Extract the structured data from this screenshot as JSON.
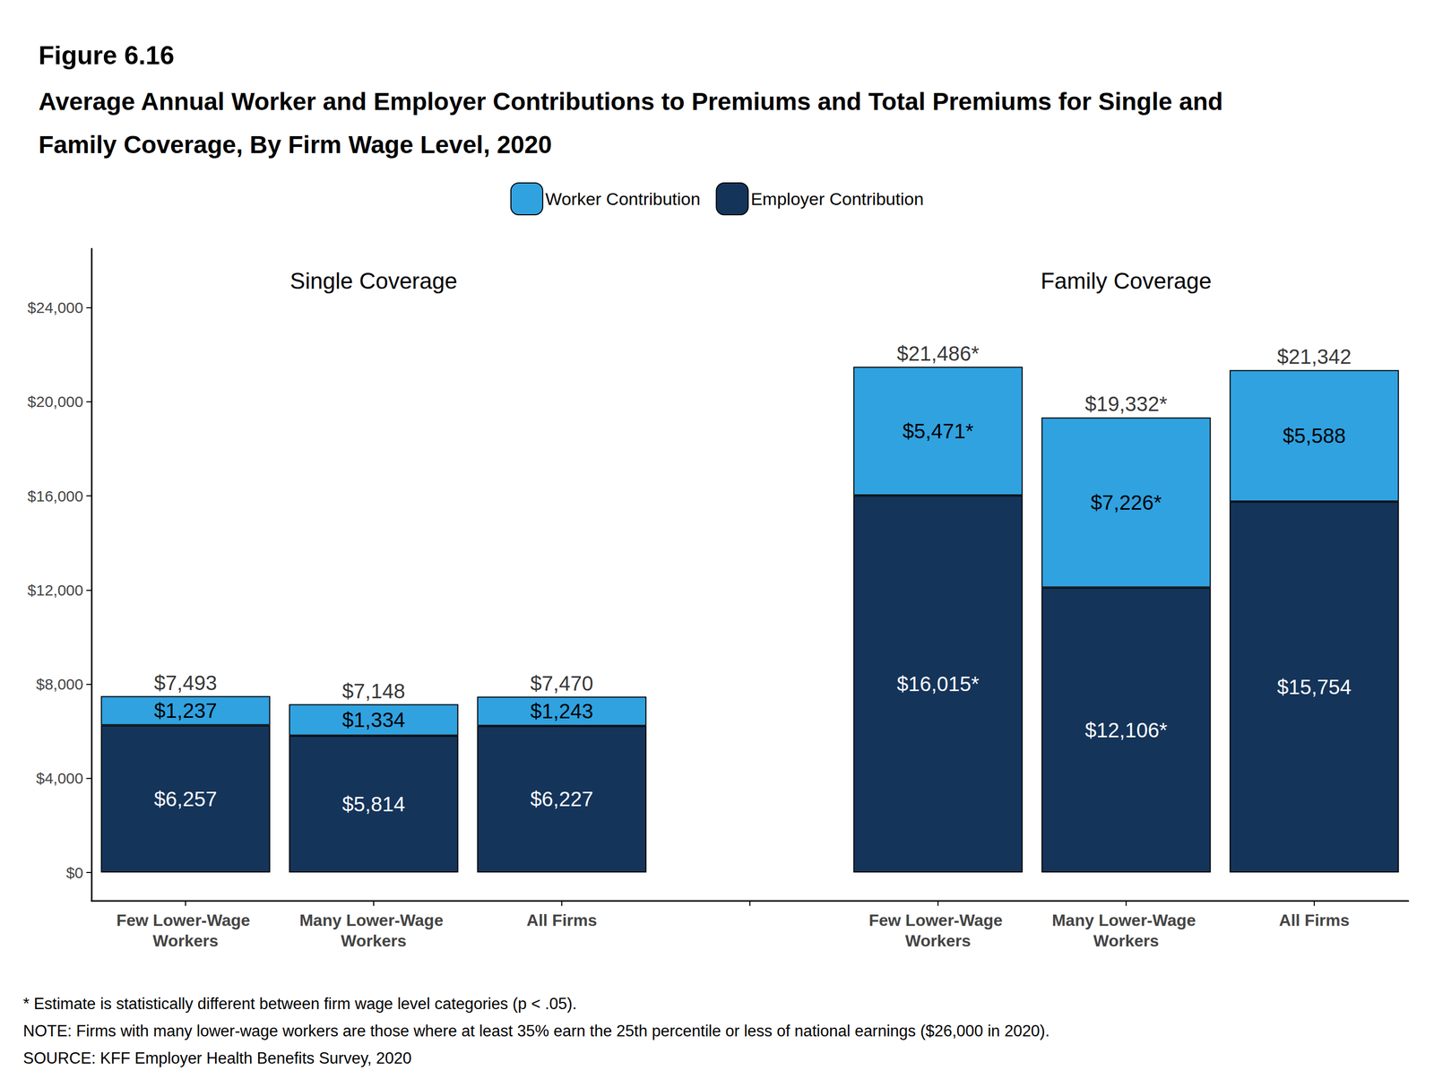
{
  "chart_data": {
    "type": "bar",
    "title": "Figure 6.16",
    "subtitle": "Average Annual Worker and Employer Contributions to Premiums and Total Premiums for Single and Family Coverage, By Firm Wage Level, 2020",
    "annotations": [
      "Single Coverage",
      "Family Coverage"
    ],
    "notes": [
      "* Estimate is statistically different between firm wage level categories (p < .05).",
      "NOTE: Firms with many lower-wage workers are those where at least 35% earn the 25th percentile or less of national earnings ($26,000 in 2020).",
      "SOURCE: KFF Employer Health Benefits Survey, 2020"
    ],
    "categories": [
      "Few Lower-Wage Workers",
      "Many Lower-Wage Workers",
      "All Firms",
      null,
      "Few Lower-Wage Workers",
      "Many Lower-Wage Workers",
      "All Firms"
    ],
    "series": [
      {
        "name": "Worker Contribution",
        "color": "#30a2e0",
        "values": [
          1237,
          1334,
          1243,
          null,
          5471,
          7226,
          5588
        ],
        "value_labels": [
          "$1,237",
          "$1,334",
          "$1,243",
          null,
          "$5,471*",
          "$7,226*",
          "$5,588"
        ]
      },
      {
        "name": "Employer Contribution",
        "color": "#15345a",
        "values": [
          6257,
          5814,
          6227,
          null,
          16015,
          12106,
          15754
        ],
        "value_labels": [
          "$6,257",
          "$5,814",
          "$6,227",
          null,
          "$16,015*",
          "$12,106*",
          "$15,754"
        ]
      }
    ],
    "totals": [
      7493,
      7148,
      7470,
      null,
      21486,
      19332,
      21342
    ],
    "total_labels": [
      "$7,493",
      "$7,148",
      "$7,470",
      null,
      "$21,486*",
      "$19,332*",
      "$21,342"
    ],
    "ylim": [
      -1200,
      26500
    ],
    "yticks": [
      {
        "value": 0,
        "label": "$0"
      },
      {
        "value": 4000,
        "label": "$4,000"
      },
      {
        "value": 8000,
        "label": "$8,000"
      },
      {
        "value": 12000,
        "label": "$12,000"
      },
      {
        "value": 16000,
        "label": "$16,000"
      },
      {
        "value": 20000,
        "label": "$20,000"
      },
      {
        "value": 24000,
        "label": "$24,000"
      }
    ],
    "stacked": true,
    "data_labels": true,
    "legend": "top",
    "grid": false
  }
}
